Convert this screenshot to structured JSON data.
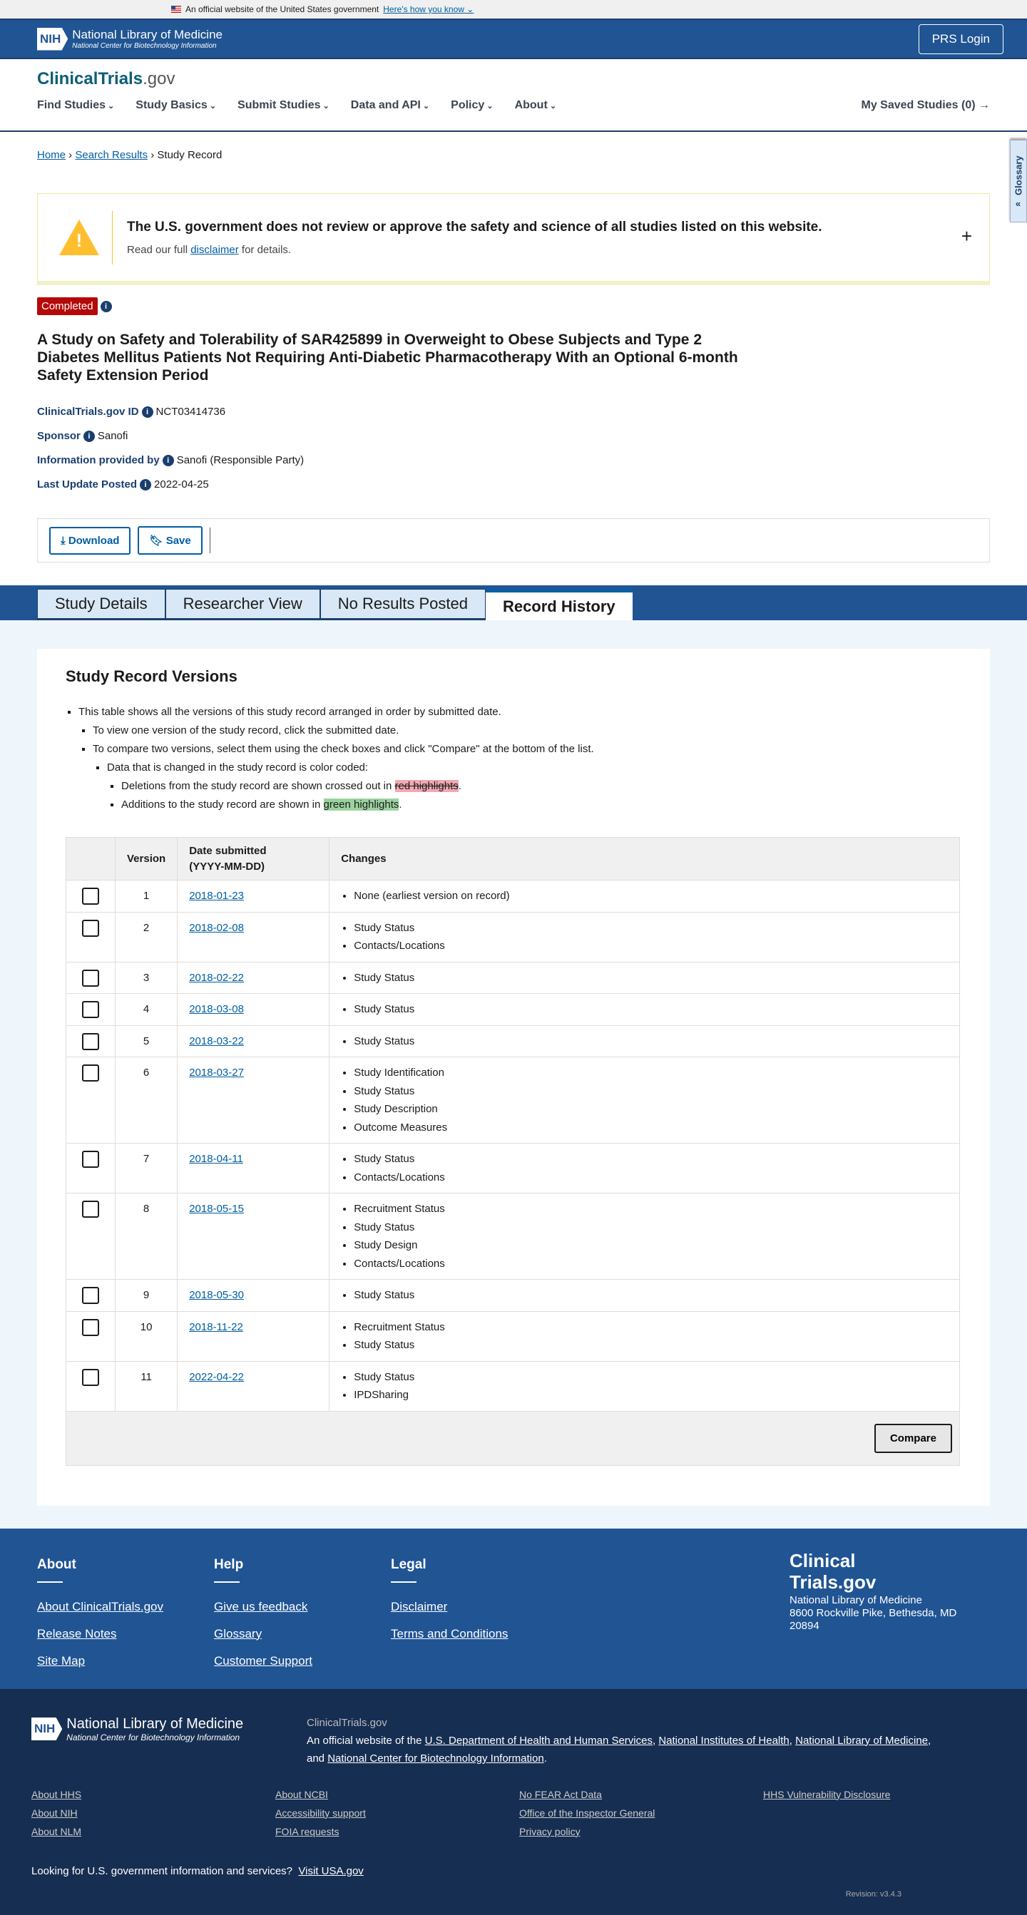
{
  "gov_banner": {
    "text": "An official website of the United States government",
    "link": "Here's how you know"
  },
  "header": {
    "nlm": "National Library of Medicine",
    "ncbi": "National Center for Biotechnology Information",
    "nih": "NIH",
    "login": "PRS Login"
  },
  "site": {
    "brand_main": "ClinicalTrials",
    "brand_suffix": ".gov",
    "nav": [
      "Find Studies",
      "Study Basics",
      "Submit Studies",
      "Data and API",
      "Policy",
      "About"
    ],
    "saved": "My Saved Studies (0) →",
    "glossary": "Glossary"
  },
  "breadcrumb": {
    "home": "Home",
    "search": "Search Results",
    "current": "Study Record"
  },
  "alert": {
    "title": "The U.S. government does not review or approve the safety and science of all studies listed on this website.",
    "pre": "Read our full ",
    "link": "disclaimer",
    "post": " for details."
  },
  "study": {
    "status": "Completed",
    "title": "A Study on Safety and Tolerability of SAR425899 in Overweight to Obese Subjects and Type 2 Diabetes Mellitus Patients Not Requiring Anti-Diabetic Pharmacotherapy With an Optional 6-month Safety Extension Period",
    "meta": [
      {
        "label": "ClinicalTrials.gov ID",
        "value": "NCT03414736"
      },
      {
        "label": "Sponsor",
        "value": "Sanofi"
      },
      {
        "label": "Information provided by",
        "value": "Sanofi (Responsible Party)"
      },
      {
        "label": "Last Update Posted",
        "value": "2022-04-25"
      }
    ],
    "download": "Download",
    "save": "Save"
  },
  "tabs": [
    "Study Details",
    "Researcher View",
    "No Results Posted",
    "Record History"
  ],
  "versions": {
    "title": "Study Record Versions",
    "intro": "This table shows all the versions of this study record arranged in order by submitted date.",
    "view": "To view one version of the study record, click the submitted date.",
    "compare": "To compare two versions, select them using the check boxes and click \"Compare\" at the bottom of the list.",
    "coded": "Data that is changed in the study record is color coded:",
    "del_pre": "Deletions from the study record are shown crossed out in ",
    "del_hl": "red highlights",
    "add_pre": "Additions to the study record are shown in ",
    "add_hl": "green highlights",
    "dot": ".",
    "headers": {
      "version": "Version",
      "date": "Date submitted",
      "date_fmt": "(YYYY-MM-DD)",
      "changes": "Changes"
    },
    "rows": [
      {
        "v": "1",
        "date": "2018-01-23",
        "changes": [
          "None (earliest version on record)"
        ]
      },
      {
        "v": "2",
        "date": "2018-02-08",
        "changes": [
          "Study Status",
          "Contacts/Locations"
        ]
      },
      {
        "v": "3",
        "date": "2018-02-22",
        "changes": [
          "Study Status"
        ]
      },
      {
        "v": "4",
        "date": "2018-03-08",
        "changes": [
          "Study Status"
        ]
      },
      {
        "v": "5",
        "date": "2018-03-22",
        "changes": [
          "Study Status"
        ]
      },
      {
        "v": "6",
        "date": "2018-03-27",
        "changes": [
          "Study Identification",
          "Study Status",
          "Study Description",
          "Outcome Measures"
        ]
      },
      {
        "v": "7",
        "date": "2018-04-11",
        "changes": [
          "Study Status",
          "Contacts/Locations"
        ]
      },
      {
        "v": "8",
        "date": "2018-05-15",
        "changes": [
          "Recruitment Status",
          "Study Status",
          "Study Design",
          "Contacts/Locations"
        ]
      },
      {
        "v": "9",
        "date": "2018-05-30",
        "changes": [
          "Study Status"
        ]
      },
      {
        "v": "10",
        "date": "2018-11-22",
        "changes": [
          "Recruitment Status",
          "Study Status"
        ]
      },
      {
        "v": "11",
        "date": "2022-04-22",
        "changes": [
          "Study Status",
          "IPDSharing"
        ]
      }
    ],
    "compare_btn": "Compare"
  },
  "footer": {
    "cols": [
      {
        "title": "About",
        "links": [
          "About ClinicalTrials.gov",
          "Release Notes",
          "Site Map"
        ]
      },
      {
        "title": "Help",
        "links": [
          "Give us feedback",
          "Glossary",
          "Customer Support"
        ]
      },
      {
        "title": "Legal",
        "links": [
          "Disclaimer",
          "Terms and Conditions"
        ]
      }
    ],
    "brand_l1": "Clinical",
    "brand_l2": "Trials.gov",
    "addr1": "National Library of Medicine",
    "addr2": "8600 Rockville Pike, Bethesda, MD",
    "addr3": "20894",
    "site": "ClinicalTrials.gov",
    "official_pre": "An official website of the ",
    "hhs": "U.S. Department of Health and Human Services",
    "nih": "National Institutes of Health",
    "nlm": "National Library of Medicine",
    "and": "and ",
    "ncbi": "National Center for Biotechnology Information",
    "links": [
      "About HHS",
      "About NCBI",
      "No FEAR Act Data",
      "HHS Vulnerability Disclosure",
      "About NIH",
      "Accessibility support",
      "Office of the Inspector General",
      "",
      "About NLM",
      "FOIA requests",
      "Privacy policy",
      ""
    ],
    "usa_pre": "Looking for U.S. government information and services?",
    "usa_link": "Visit USA.gov",
    "revision": "Revision: v3.4.3"
  }
}
